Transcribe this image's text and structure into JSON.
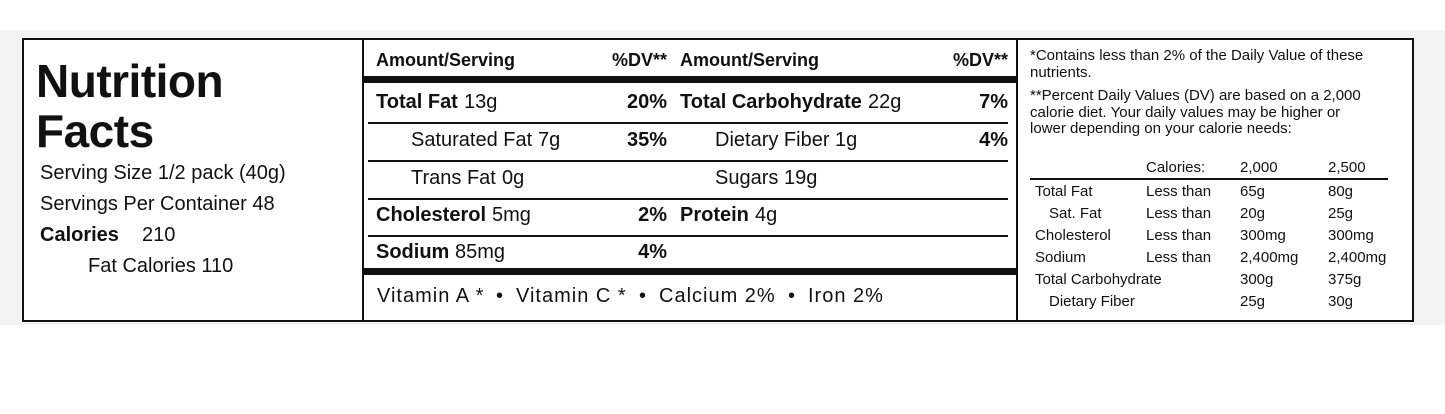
{
  "title_lines": [
    "Nutrition",
    "Facts"
  ],
  "serving_size": "Serving Size 1/2 pack (40g)",
  "servings_per_container": "Servings Per Container 48",
  "calories": {
    "label": "Calories",
    "value": "210"
  },
  "fat_calories": "Fat Calories 110",
  "headers": [
    "Amount/Serving",
    "%DV**",
    "Amount/Serving",
    "%DV**"
  ],
  "left_rows": [
    {
      "name": "Total Fat",
      "amount": "13g",
      "dv": "20%",
      "bold": true
    },
    {
      "name": "Saturated Fat",
      "amount": "7g",
      "dv": "35%",
      "indent": true
    },
    {
      "name": "Trans Fat",
      "amount": "0g",
      "indent": true
    },
    {
      "name": "Cholesterol",
      "amount": "5mg",
      "dv": "2%",
      "bold": true
    },
    {
      "name": "Sodium",
      "amount": "85mg",
      "dv": "4%",
      "bold": true
    }
  ],
  "right_rows": [
    {
      "name": "Total Carbohydrate",
      "amount": "22g",
      "dv": "7%",
      "bold": true
    },
    {
      "name": "Dietary Fiber",
      "amount": "1g",
      "dv": "4%",
      "indent": true
    },
    {
      "name": "Sugars",
      "amount": "19g",
      "indent": true
    },
    {
      "name": "Protein",
      "amount": "4g",
      "bold": true
    }
  ],
  "vitamins": [
    "Vitamin A *",
    "Vitamin C *",
    "Calcium 2%",
    "Iron 2%"
  ],
  "footnotes": [
    "*Contains less than 2% of the Daily Value of these nutrients.",
    "**Percent Daily Values (DV) are based on a 2,000 calorie diet. Your daily values may be higher or lower depending on your calorie needs:"
  ],
  "dv_table": {
    "header": [
      "Calories:",
      "2,000",
      "2,500"
    ],
    "rows": [
      {
        "name": "Total Fat",
        "qualifier": "Less than",
        "v1": "65g",
        "v2": "80g"
      },
      {
        "name": "Sat. Fat",
        "qualifier": "Less than",
        "v1": "20g",
        "v2": "25g",
        "indent": true
      },
      {
        "name": "Cholesterol",
        "qualifier": "Less than",
        "v1": "300mg",
        "v2": "300mg"
      },
      {
        "name": "Sodium",
        "qualifier": "Less than",
        "v1": "2,400mg",
        "v2": "2,400mg"
      },
      {
        "name": "Total Carbohydrate",
        "v1": "300g",
        "v2": "375g"
      },
      {
        "name": "Dietary Fiber",
        "v1": "25g",
        "v2": "30g",
        "indent": true
      }
    ]
  }
}
